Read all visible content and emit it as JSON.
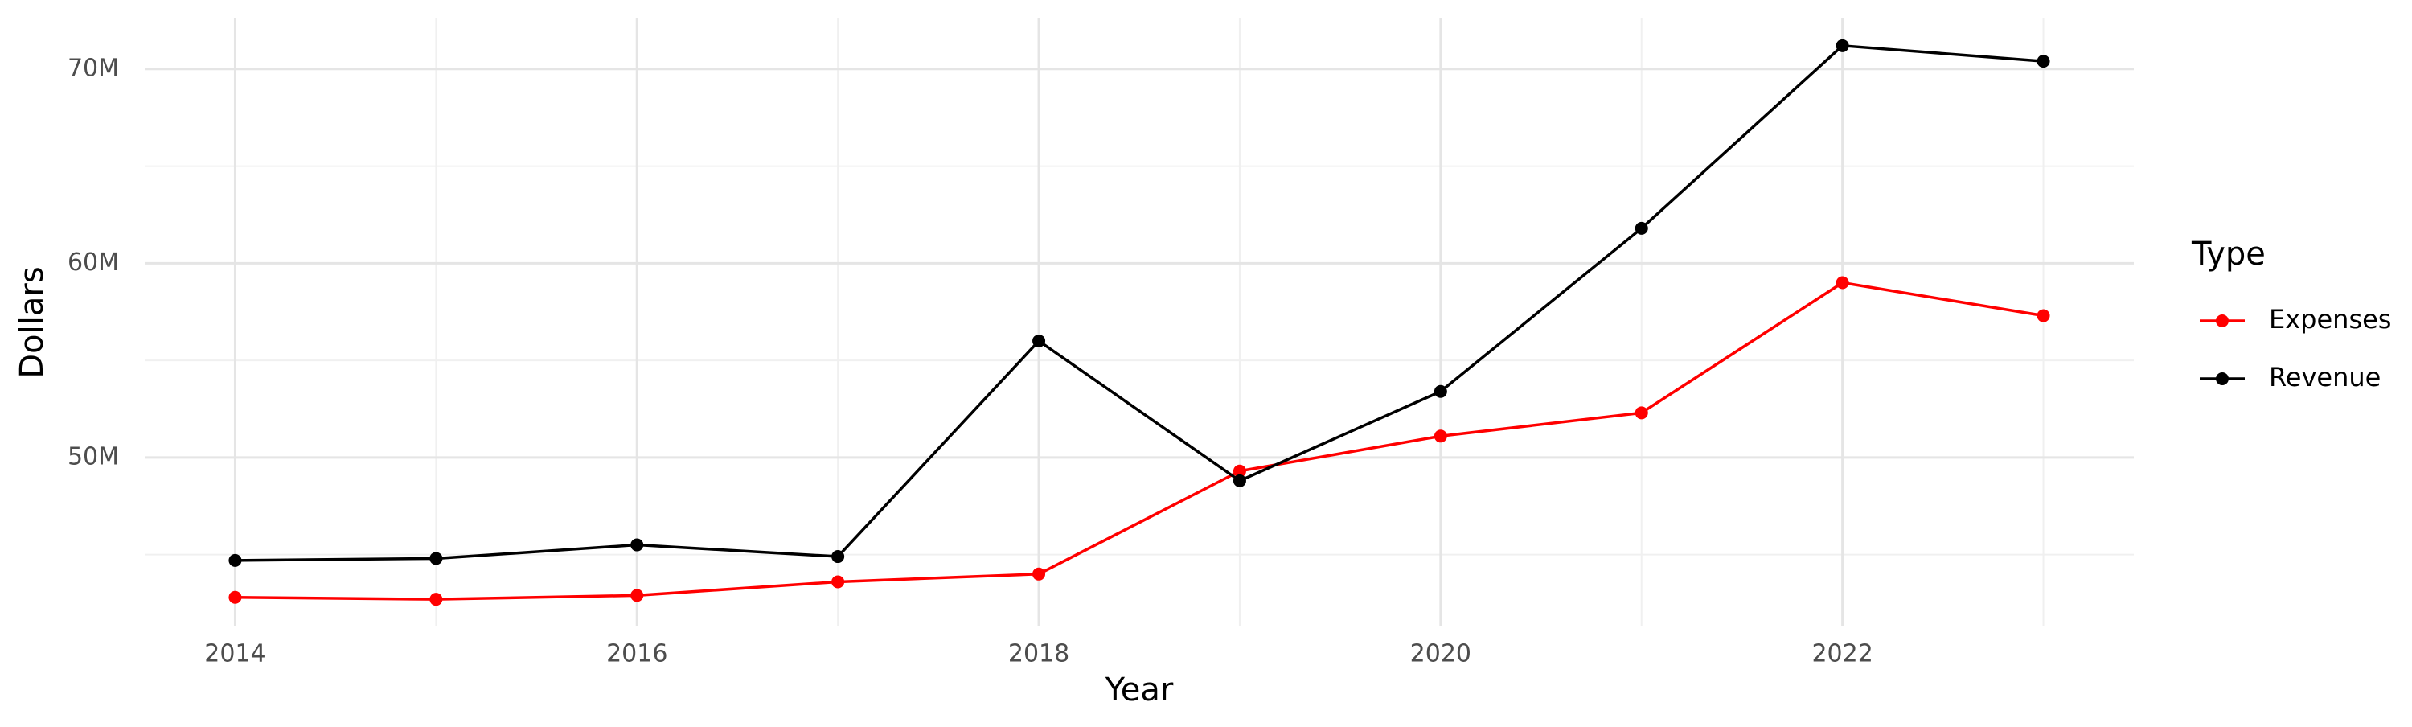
{
  "chart_data": {
    "type": "line",
    "x_label": "Year",
    "y_label": "Dollars",
    "legend_title": "Type",
    "legend_position": "right",
    "grid": true,
    "x": [
      2014,
      2015,
      2016,
      2017,
      2018,
      2019,
      2020,
      2021,
      2022,
      2023
    ],
    "series": [
      {
        "name": "Expenses",
        "color": "#ff0000",
        "values": [
          42800000,
          42700000,
          42900000,
          43600000,
          44000000,
          49300000,
          51100000,
          52300000,
          59000000,
          57300000
        ]
      },
      {
        "name": "Revenue",
        "color": "#000000",
        "values": [
          44700000,
          44800000,
          45500000,
          44900000,
          56000000,
          48800000,
          53400000,
          61800000,
          71200000,
          70400000
        ]
      }
    ],
    "xlim": [
      2013.55,
      2023.45
    ],
    "xticks": [
      2014,
      2016,
      2018,
      2020,
      2022
    ],
    "xminorticks": [
      2015,
      2017,
      2019,
      2021,
      2023
    ],
    "ylim": [
      41300000,
      72600000
    ],
    "yticks": [
      {
        "value": 50000000,
        "label": "50M"
      },
      {
        "value": 60000000,
        "label": "60M"
      },
      {
        "value": 70000000,
        "label": "70M"
      }
    ],
    "yminorticks": [
      45000000,
      55000000,
      65000000
    ]
  }
}
